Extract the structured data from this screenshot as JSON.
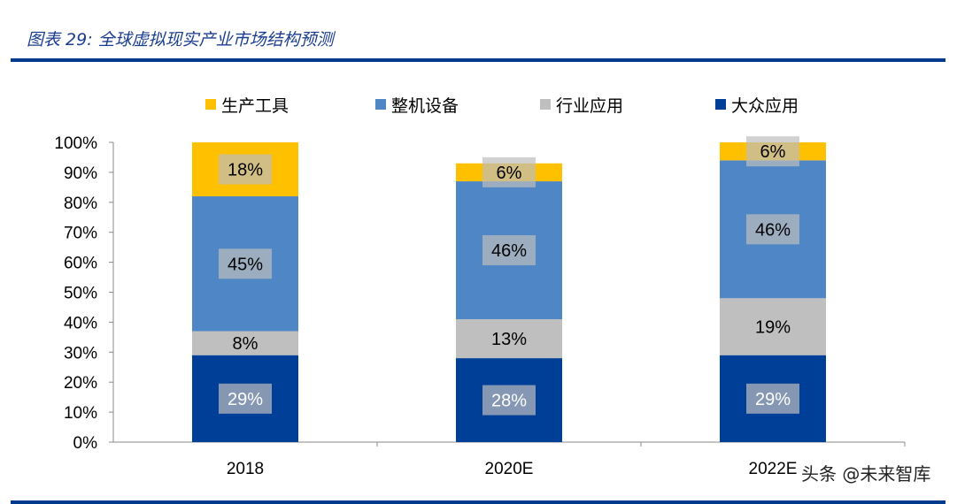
{
  "header": {
    "title": "图表 29:  全球虚拟现实产业市场结构预测"
  },
  "watermark": "头条 @未来智库",
  "chart_data": {
    "type": "stacked-bar",
    "title": "",
    "categories": [
      "2018",
      "2020E",
      "2022E"
    ],
    "series": [
      {
        "name": "大众应用",
        "color": "#003f98",
        "values": [
          29,
          28,
          29
        ]
      },
      {
        "name": "行业应用",
        "color": "#bfbfbf",
        "values": [
          8,
          13,
          19
        ]
      },
      {
        "name": "整机设备",
        "color": "#4f86c6",
        "values": [
          45,
          46,
          46
        ]
      },
      {
        "name": "生产工具",
        "color": "#ffc000",
        "values": [
          18,
          6,
          6
        ]
      }
    ],
    "legend_order": [
      "生产工具",
      "整机设备",
      "行业应用",
      "大众应用"
    ],
    "legend_position": "top",
    "ylim": [
      0,
      100
    ],
    "yticks": [
      "0%",
      "10%",
      "20%",
      "30%",
      "40%",
      "50%",
      "60%",
      "70%",
      "80%",
      "90%",
      "100%"
    ],
    "grid": false
  }
}
